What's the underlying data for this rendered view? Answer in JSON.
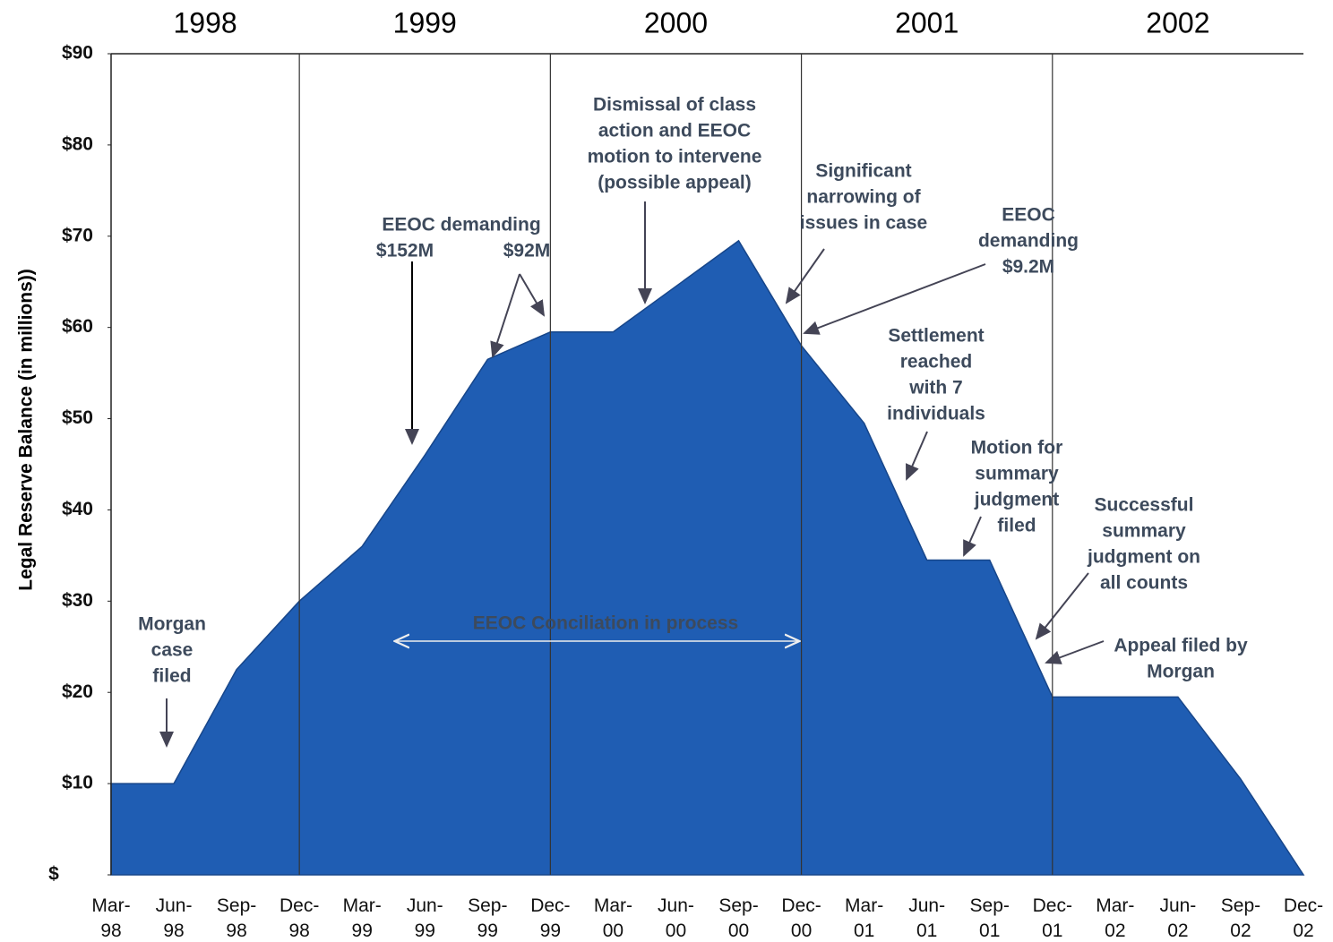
{
  "chart_data": {
    "type": "area",
    "y_label": "Legal Reserve Balance (in millions))",
    "year_labels": [
      "1998",
      "1999",
      "2000",
      "2001",
      "2002"
    ],
    "categories": [
      "Mar-98",
      "Jun-98",
      "Sep-98",
      "Dec-98",
      "Mar-99",
      "Jun-99",
      "Sep-99",
      "Dec-99",
      "Mar-00",
      "Jun-00",
      "Sep-00",
      "Dec-00",
      "Mar-01",
      "Jun-01",
      "Sep-01",
      "Dec-01",
      "Mar-02",
      "Jun-02",
      "Sep-02",
      "Dec-02"
    ],
    "values": [
      10,
      10,
      22.5,
      30,
      36,
      46,
      56.5,
      59.5,
      59.5,
      64.5,
      69.5,
      58,
      49.5,
      34.5,
      34.5,
      19.5,
      19.5,
      19.5,
      10.5,
      0
    ],
    "color": "#1f5db3",
    "ylim": [
      0,
      90
    ],
    "yticks": [
      {
        "value": 0,
        "label": "$"
      },
      {
        "value": 10,
        "label": "$10"
      },
      {
        "value": 20,
        "label": "$20"
      },
      {
        "value": 30,
        "label": "$30"
      },
      {
        "value": 40,
        "label": "$40"
      },
      {
        "value": 50,
        "label": "$50"
      },
      {
        "value": 60,
        "label": "$60"
      },
      {
        "value": 70,
        "label": "$70"
      },
      {
        "value": 80,
        "label": "$80"
      },
      {
        "value": 90,
        "label": "$90"
      }
    ],
    "annotations": [
      {
        "text": [
          "Morgan",
          "case",
          "filed"
        ]
      },
      {
        "text": [
          "EEOC demanding"
        ]
      },
      {
        "text": [
          "$152M"
        ]
      },
      {
        "text": [
          "$92M"
        ]
      },
      {
        "text": [
          "Dismissal of class",
          "action and EEOC",
          "motion to intervene",
          "(possible appeal)"
        ]
      },
      {
        "text": [
          "Significant",
          "narrowing of",
          "issues in case"
        ]
      },
      {
        "text": [
          "EEOC",
          "demanding",
          "$9.2M"
        ]
      },
      {
        "text": [
          "Settlement",
          "reached",
          "with 7",
          "individuals"
        ]
      },
      {
        "text": [
          "Motion for",
          "summary",
          "judgment",
          "filed"
        ]
      },
      {
        "text": [
          "Successful",
          "summary",
          "judgment on",
          "all counts"
        ]
      },
      {
        "text": [
          "Appeal filed by",
          "Morgan"
        ]
      },
      {
        "text": [
          "EEOC Conciliation in process"
        ]
      }
    ]
  }
}
